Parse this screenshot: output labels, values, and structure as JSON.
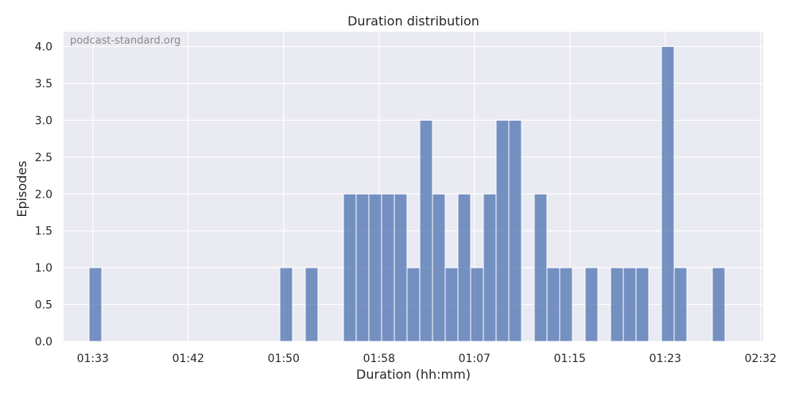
{
  "chart_data": {
    "type": "bar",
    "title": "Duration distribution",
    "xlabel": "Duration (hh:mm)",
    "ylabel": "Episodes",
    "watermark": "podcast-standard.org",
    "xlim": [
      0,
      54
    ],
    "ylim": [
      0,
      4.2
    ],
    "x_ticks": [
      {
        "pos": 2.3,
        "label": "01:33"
      },
      {
        "pos": 9.8,
        "label": "01:42"
      },
      {
        "pos": 17.3,
        "label": "01:50"
      },
      {
        "pos": 24.8,
        "label": "01:58"
      },
      {
        "pos": 32.3,
        "label": "01:07"
      },
      {
        "pos": 39.8,
        "label": "01:15"
      },
      {
        "pos": 47.3,
        "label": "01:23"
      },
      {
        "pos": 54.8,
        "label": "02:32"
      }
    ],
    "y_ticks": [
      {
        "value": 0,
        "label": "0.0"
      },
      {
        "value": 0.5,
        "label": "0.5"
      },
      {
        "value": 1,
        "label": "1.0"
      },
      {
        "value": 1.5,
        "label": "1.5"
      },
      {
        "value": 2,
        "label": "2.0"
      },
      {
        "value": 2.5,
        "label": "2.5"
      },
      {
        "value": 3,
        "label": "3.0"
      },
      {
        "value": 3.5,
        "label": "3.5"
      },
      {
        "value": 4,
        "label": "4.0"
      }
    ],
    "bins": [
      2,
      17,
      19,
      22,
      23,
      24,
      25,
      26,
      27,
      28,
      29,
      30,
      31,
      32,
      33,
      34,
      35,
      37,
      38,
      39,
      41,
      43,
      44,
      45,
      47,
      48,
      51
    ],
    "values": [
      1,
      1,
      1,
      2,
      2,
      2,
      2,
      2,
      1,
      3,
      2,
      1,
      2,
      1,
      2,
      3,
      3,
      2,
      1,
      1,
      1,
      1,
      1,
      1,
      4,
      1,
      1
    ],
    "colors": {
      "bar": "#4c72b0",
      "bar_edge": "#ffffff",
      "plot_bg": "#eaeaf2",
      "grid": "#ffffff"
    },
    "grid": true
  }
}
